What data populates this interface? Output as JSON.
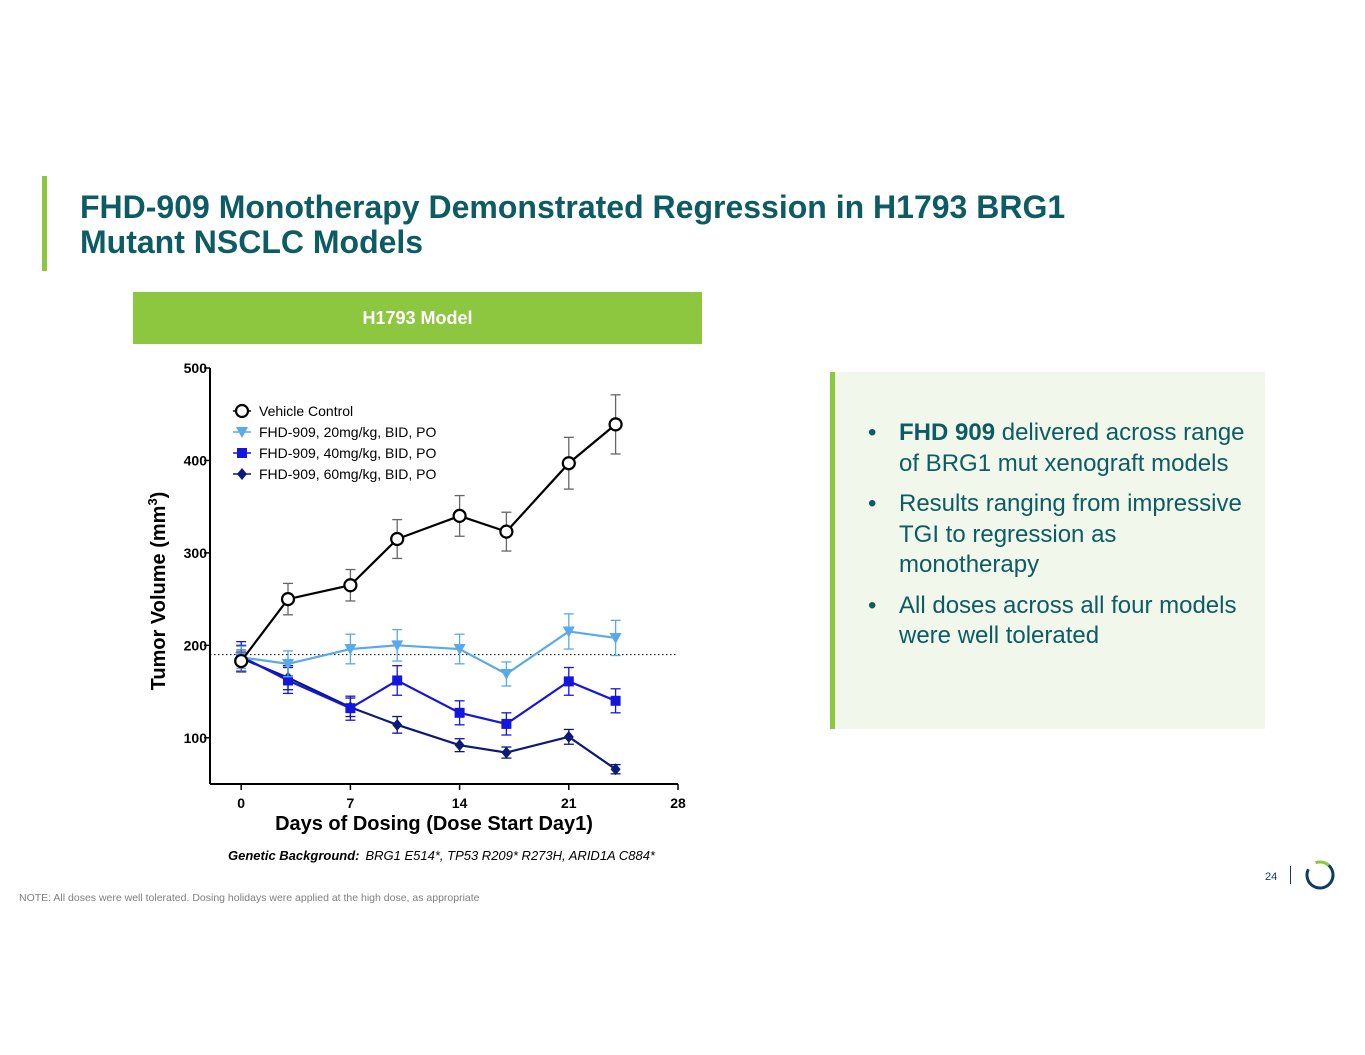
{
  "slide": {
    "title_line1": "FHD-909 Monotherapy Demonstrated Regression in H1793 BRG1",
    "title_line2": "Mutant NSCLC Models",
    "model_header": "H1793 Model",
    "genetic_label": "Genetic Background:",
    "genetic_value": "BRG1 E514*, TP53 R209* R273H, ARID1A C884*",
    "note": "NOTE: All doses were well tolerated. Dosing holidays were applied at the high dose, as appropriate",
    "page_number": "24",
    "colors": {
      "accent_green": "#8dc63f",
      "title_teal": "#0d5b63",
      "box_bg": "#f1f7ea"
    }
  },
  "bullets": [
    {
      "bold": "FHD 909",
      "text": " delivered across range of BRG1 mut xenograft models"
    },
    {
      "bold": "",
      "text": "Results ranging from impressive TGI to regression as monotherapy"
    },
    {
      "bold": "",
      "text": "All doses across all four models were well tolerated"
    }
  ],
  "chart_data": {
    "type": "line",
    "title": "H1793 Model",
    "xlabel": "Days of Dosing (Dose Start Day1)",
    "ylabel": "Tumor Volume (mm",
    "ylabel_sup": "3",
    "ylabel_close": ")",
    "xlim": [
      -2,
      28
    ],
    "ylim": [
      50,
      500
    ],
    "x_ticks": [
      0,
      7,
      14,
      21,
      28
    ],
    "y_ticks": [
      100,
      200,
      300,
      400,
      500
    ],
    "reference_line_y": 190,
    "legend_position": "top-left",
    "x": [
      0,
      3,
      7,
      10,
      14,
      17,
      21,
      24
    ],
    "series": [
      {
        "name": "Vehicle Control",
        "marker": "open-circle",
        "color": "#000000",
        "values": [
          183,
          250,
          265,
          315,
          340,
          323,
          397,
          439
        ],
        "errors": [
          12,
          17,
          17,
          21,
          22,
          21,
          28,
          32
        ]
      },
      {
        "name": "FHD-909, 20mg/kg, BID, PO",
        "marker": "triangle-down",
        "color": "#5aa9ea",
        "values": [
          187,
          180,
          196,
          200,
          196,
          169,
          215,
          208
        ],
        "errors": [
          12,
          14,
          16,
          17,
          16,
          13,
          19,
          19
        ]
      },
      {
        "name": "FHD-909, 40mg/kg, BID, PO",
        "marker": "square",
        "color": "#1515e0",
        "values": [
          188,
          162,
          132,
          162,
          127,
          115,
          161,
          140
        ],
        "errors": [
          16,
          14,
          13,
          16,
          13,
          12,
          15,
          13
        ]
      },
      {
        "name": "FHD-909, 60mg/kg, BID, PO",
        "marker": "diamond",
        "color": "#0b1a7a",
        "values": [
          186,
          165,
          133,
          114,
          92,
          84,
          101,
          66
        ],
        "errors": [
          14,
          13,
          10,
          9,
          7,
          6,
          8,
          5
        ]
      }
    ]
  }
}
